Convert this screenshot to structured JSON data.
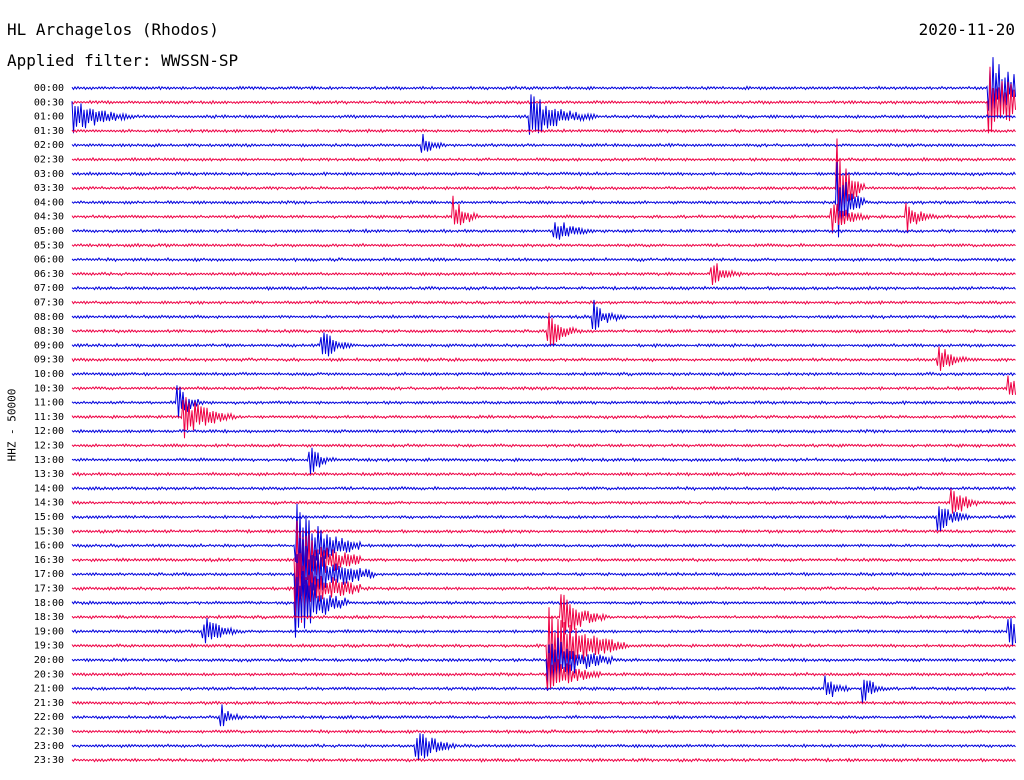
{
  "header": {
    "station": "HL Archagelos (Rhodos)",
    "filter": "Applied filter: WWSSN-SP",
    "date": "2020-11-20"
  },
  "chart_data": {
    "type": "line",
    "title": "HL Archagelos (Rhodos)",
    "subtitle": "Applied filter: WWSSN-SP",
    "date": "2020-11-20",
    "ylabel": "HHZ - 50000",
    "xlabel": "",
    "y_tick_labels": [
      "00:00",
      "00:30",
      "01:00",
      "01:30",
      "02:00",
      "02:30",
      "03:00",
      "03:30",
      "04:00",
      "04:30",
      "05:00",
      "05:30",
      "06:00",
      "06:30",
      "07:00",
      "07:30",
      "08:00",
      "08:30",
      "09:00",
      "09:30",
      "10:00",
      "10:30",
      "11:00",
      "11:30",
      "12:00",
      "12:30",
      "13:00",
      "13:30",
      "14:00",
      "14:30",
      "15:00",
      "15:30",
      "16:00",
      "16:30",
      "17:00",
      "17:30",
      "18:00",
      "18:30",
      "19:00",
      "19:30",
      "20:00",
      "20:30",
      "21:00",
      "21:30",
      "22:00",
      "22:30",
      "23:00",
      "23:30"
    ],
    "trace_minutes": 15,
    "trace_colors": [
      "#0000dd",
      "#ee0044"
    ],
    "grid": false,
    "legend": "none",
    "events": [
      {
        "time": "00:00",
        "minute": 14.6,
        "amplitude": 1.0,
        "duration_min": 0.8
      },
      {
        "time": "00:30",
        "minute": 14.6,
        "amplitude": 1.0,
        "duration_min": 1.0
      },
      {
        "time": "01:00",
        "minute": 0.0,
        "amplitude": 0.5,
        "duration_min": 1.0
      },
      {
        "time": "01:00",
        "minute": 7.3,
        "amplitude": 0.6,
        "duration_min": 1.0
      },
      {
        "time": "02:00",
        "minute": 5.6,
        "amplitude": 0.25,
        "duration_min": 0.4
      },
      {
        "time": "03:30",
        "minute": 12.2,
        "amplitude": 1.0,
        "duration_min": 0.4
      },
      {
        "time": "04:00",
        "minute": 12.2,
        "amplitude": 1.0,
        "duration_min": 0.4
      },
      {
        "time": "04:30",
        "minute": 6.1,
        "amplitude": 0.45,
        "duration_min": 0.4
      },
      {
        "time": "04:30",
        "minute": 12.1,
        "amplitude": 0.45,
        "duration_min": 0.6
      },
      {
        "time": "04:30",
        "minute": 13.3,
        "amplitude": 0.35,
        "duration_min": 0.5
      },
      {
        "time": "05:00",
        "minute": 7.7,
        "amplitude": 0.35,
        "duration_min": 0.6
      },
      {
        "time": "06:30",
        "minute": 10.2,
        "amplitude": 0.35,
        "duration_min": 0.5
      },
      {
        "time": "08:00",
        "minute": 8.3,
        "amplitude": 0.45,
        "duration_min": 0.5
      },
      {
        "time": "08:30",
        "minute": 7.6,
        "amplitude": 0.45,
        "duration_min": 0.5
      },
      {
        "time": "09:00",
        "minute": 4.0,
        "amplitude": 0.4,
        "duration_min": 0.5
      },
      {
        "time": "09:30",
        "minute": 13.8,
        "amplitude": 0.35,
        "duration_min": 0.6
      },
      {
        "time": "10:30",
        "minute": 14.9,
        "amplitude": 0.4,
        "duration_min": 0.6
      },
      {
        "time": "11:00",
        "minute": 1.7,
        "amplitude": 0.5,
        "duration_min": 0.4
      },
      {
        "time": "11:30",
        "minute": 1.8,
        "amplitude": 0.6,
        "duration_min": 0.8
      },
      {
        "time": "13:00",
        "minute": 3.8,
        "amplitude": 0.4,
        "duration_min": 0.4
      },
      {
        "time": "14:30",
        "minute": 14.0,
        "amplitude": 0.4,
        "duration_min": 0.5
      },
      {
        "time": "15:00",
        "minute": 13.8,
        "amplitude": 0.4,
        "duration_min": 0.5
      },
      {
        "time": "16:00",
        "minute": 3.6,
        "amplitude": 1.0,
        "duration_min": 1.0
      },
      {
        "time": "16:30",
        "minute": 3.6,
        "amplitude": 1.0,
        "duration_min": 1.0
      },
      {
        "time": "17:00",
        "minute": 3.6,
        "amplitude": 1.0,
        "duration_min": 1.2
      },
      {
        "time": "17:30",
        "minute": 3.6,
        "amplitude": 1.0,
        "duration_min": 1.0
      },
      {
        "time": "18:00",
        "minute": 3.6,
        "amplitude": 1.0,
        "duration_min": 0.8
      },
      {
        "time": "18:30",
        "minute": 7.8,
        "amplitude": 0.6,
        "duration_min": 0.7
      },
      {
        "time": "19:00",
        "minute": 2.1,
        "amplitude": 0.4,
        "duration_min": 0.6
      },
      {
        "time": "19:00",
        "minute": 14.9,
        "amplitude": 0.5,
        "duration_min": 0.5
      },
      {
        "time": "19:30",
        "minute": 7.6,
        "amplitude": 1.0,
        "duration_min": 1.2
      },
      {
        "time": "20:00",
        "minute": 7.6,
        "amplitude": 0.8,
        "duration_min": 1.0
      },
      {
        "time": "20:30",
        "minute": 7.6,
        "amplitude": 0.6,
        "duration_min": 0.8
      },
      {
        "time": "21:00",
        "minute": 12.0,
        "amplitude": 0.35,
        "duration_min": 0.4
      },
      {
        "time": "21:00",
        "minute": 12.6,
        "amplitude": 0.35,
        "duration_min": 0.4
      },
      {
        "time": "22:00",
        "minute": 2.4,
        "amplitude": 0.3,
        "duration_min": 0.4
      },
      {
        "time": "23:00",
        "minute": 5.5,
        "amplitude": 0.5,
        "duration_min": 0.6
      }
    ]
  }
}
